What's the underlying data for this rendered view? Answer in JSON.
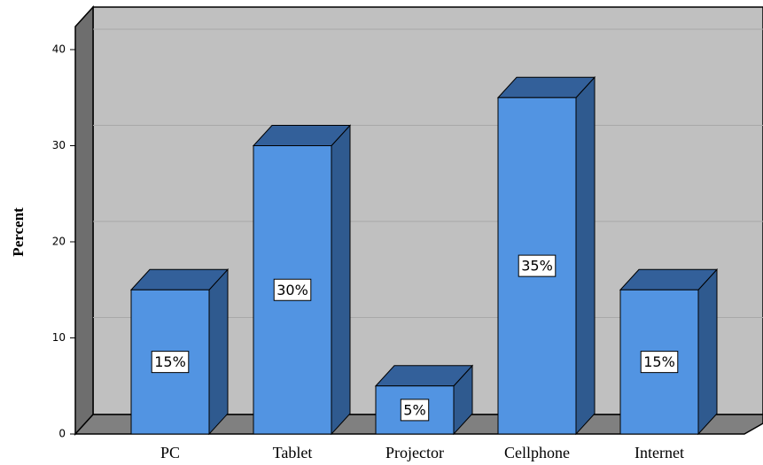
{
  "chart_data": {
    "type": "bar3d",
    "y_axis_label": "Percent",
    "categories": [
      "PC",
      "Tablet",
      "Projector",
      "Cellphone",
      "Internet"
    ],
    "values": [
      15,
      30,
      5,
      35,
      15
    ],
    "value_labels": [
      "15%",
      "30%",
      "5%",
      "35%",
      "15%"
    ],
    "color": "#5294e2",
    "ylim": [
      0,
      40
    ],
    "yticks": [
      0,
      10,
      20,
      30,
      40
    ],
    "grid": true
  }
}
